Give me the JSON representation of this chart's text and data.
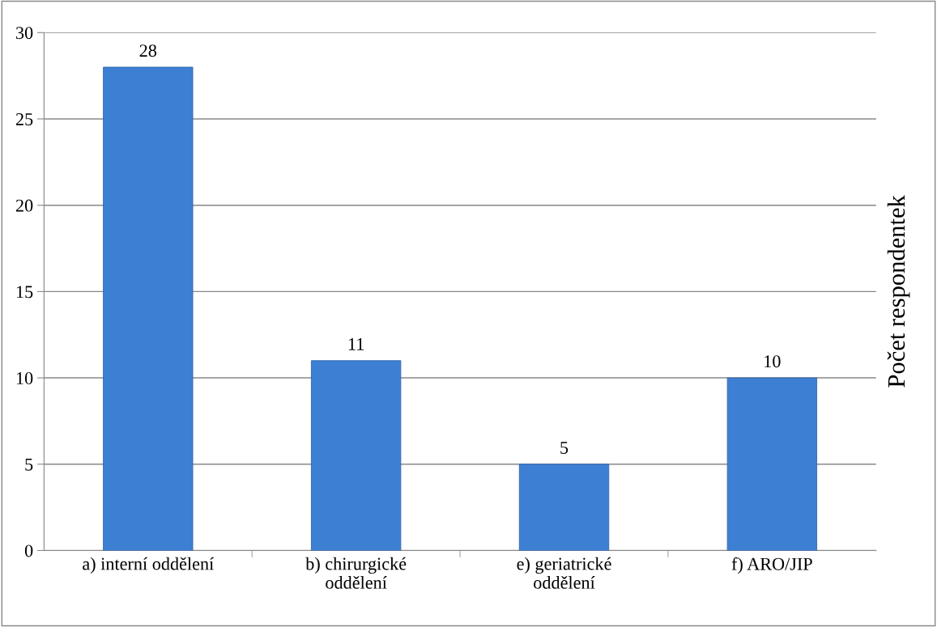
{
  "chart_data": {
    "type": "bar",
    "ylabel": "Počet respondentek",
    "categories": [
      "a) interní oddělení",
      "b) chirurgické\noddělení",
      "e) geriatrické\noddělení",
      "f) ARO/JIP"
    ],
    "values": [
      28,
      11,
      5,
      10
    ],
    "color": "#3d7fd3",
    "ylim": [
      0,
      30
    ],
    "yticks": [
      0,
      5,
      10,
      15,
      20,
      25,
      30
    ],
    "grid": "y",
    "data_labels": true
  }
}
